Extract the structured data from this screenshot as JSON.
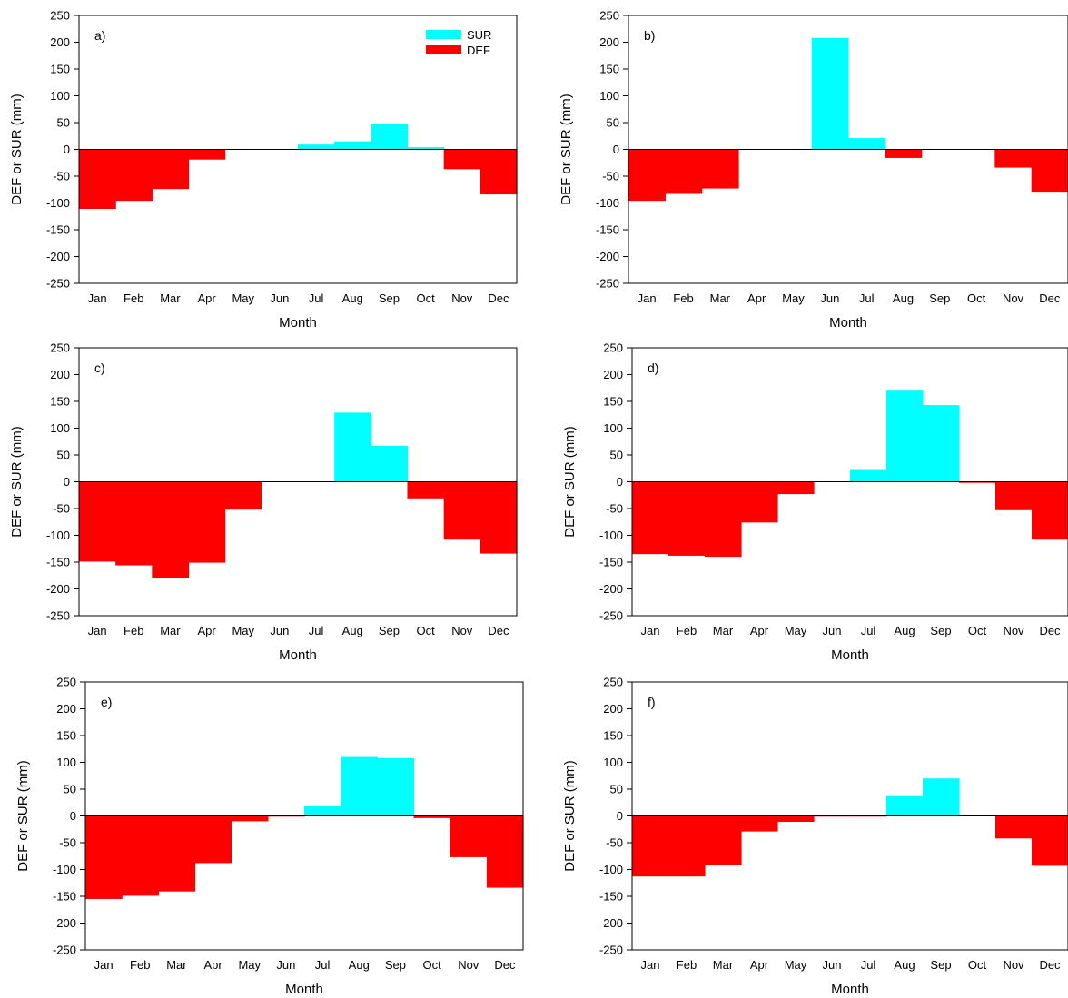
{
  "chart_data": [
    {
      "type": "bar",
      "panel_label": "a)",
      "categories": [
        "Jan",
        "Feb",
        "Mar",
        "Apr",
        "May",
        "Jun",
        "Jul",
        "Aug",
        "Sep",
        "Oct",
        "Nov",
        "Dec"
      ],
      "series": [
        {
          "name": "SUR",
          "values": [
            0,
            0,
            0,
            0,
            0,
            0,
            9,
            15,
            47,
            4,
            0,
            0
          ]
        },
        {
          "name": "DEF",
          "values": [
            -111,
            -96,
            -74,
            -19,
            0,
            0,
            0,
            0,
            0,
            0,
            -37,
            -84
          ]
        }
      ],
      "xlabel": "Month",
      "ylabel": "DEF or SUR (mm)",
      "ylim": [
        -250,
        250
      ],
      "yticks": [
        250,
        200,
        150,
        100,
        50,
        0,
        -50,
        -100,
        -150,
        -200,
        -250
      ],
      "legend": {
        "entries": [
          "SUR",
          "DEF"
        ],
        "position": "top-right"
      }
    },
    {
      "type": "bar",
      "panel_label": "b)",
      "categories": [
        "Jan",
        "Feb",
        "Mar",
        "Apr",
        "May",
        "Jun",
        "Jul",
        "Aug",
        "Sep",
        "Oct",
        "Nov",
        "Dec"
      ],
      "series": [
        {
          "name": "SUR",
          "values": [
            0,
            0,
            0,
            0,
            0,
            208,
            21,
            0,
            0,
            0,
            0,
            0
          ]
        },
        {
          "name": "DEF",
          "values": [
            -96,
            -83,
            -73,
            0,
            0,
            0,
            0,
            -16,
            0,
            0,
            -34,
            -79
          ]
        }
      ],
      "xlabel": "Month",
      "ylabel": "DEF or SUR (mm)",
      "ylim": [
        -250,
        250
      ],
      "yticks": [
        250,
        200,
        150,
        100,
        50,
        0,
        -50,
        -100,
        -150,
        -200,
        -250
      ]
    },
    {
      "type": "bar",
      "panel_label": "c)",
      "categories": [
        "Jan",
        "Feb",
        "Mar",
        "Apr",
        "May",
        "Jun",
        "Jul",
        "Aug",
        "Sep",
        "Oct",
        "Nov",
        "Dec"
      ],
      "series": [
        {
          "name": "SUR",
          "values": [
            0,
            0,
            0,
            0,
            0,
            0,
            0,
            129,
            67,
            0,
            0,
            0
          ]
        },
        {
          "name": "DEF",
          "values": [
            -149,
            -156,
            -180,
            -151,
            -52,
            0,
            0,
            0,
            0,
            -31,
            -108,
            -134
          ]
        }
      ],
      "xlabel": "Month",
      "ylabel": "DEF or SUR (mm)",
      "ylim": [
        -250,
        250
      ],
      "yticks": [
        250,
        200,
        150,
        100,
        50,
        0,
        -50,
        -100,
        -150,
        -200,
        -250
      ]
    },
    {
      "type": "bar",
      "panel_label": "d)",
      "categories": [
        "Jan",
        "Feb",
        "Mar",
        "Apr",
        "May",
        "Jun",
        "Jul",
        "Aug",
        "Sep",
        "Oct",
        "Nov",
        "Dec"
      ],
      "series": [
        {
          "name": "SUR",
          "values": [
            0,
            0,
            0,
            0,
            0,
            0,
            22,
            170,
            143,
            0,
            0,
            0
          ]
        },
        {
          "name": "DEF",
          "values": [
            -135,
            -138,
            -140,
            -76,
            -23,
            0,
            0,
            0,
            0,
            -2,
            -53,
            -108
          ]
        }
      ],
      "xlabel": "Month",
      "ylabel": "DEF or SUR (mm)",
      "ylim": [
        -250,
        250
      ],
      "yticks": [
        250,
        200,
        150,
        100,
        50,
        0,
        -50,
        -100,
        -150,
        -200,
        -250
      ]
    },
    {
      "type": "bar",
      "panel_label": "e)",
      "categories": [
        "Jan",
        "Feb",
        "Mar",
        "Apr",
        "May",
        "Jun",
        "Jul",
        "Aug",
        "Sep",
        "Oct",
        "Nov",
        "Dec"
      ],
      "series": [
        {
          "name": "SUR",
          "values": [
            0,
            0,
            0,
            0,
            0,
            0,
            18,
            110,
            108,
            0,
            0,
            0
          ]
        },
        {
          "name": "DEF",
          "values": [
            -155,
            -149,
            -141,
            -88,
            -10,
            -1,
            0,
            0,
            0,
            -4,
            -77,
            -134
          ]
        }
      ],
      "xlabel": "Month",
      "ylabel": "DEF or SUR (mm)",
      "ylim": [
        -250,
        250
      ],
      "yticks": [
        250,
        200,
        150,
        100,
        50,
        0,
        -50,
        -100,
        -150,
        -200,
        -250
      ]
    },
    {
      "type": "bar",
      "panel_label": "f)",
      "categories": [
        "Jan",
        "Feb",
        "Mar",
        "Apr",
        "May",
        "Jun",
        "Jul",
        "Aug",
        "Sep",
        "Oct",
        "Nov",
        "Dec"
      ],
      "series": [
        {
          "name": "SUR",
          "values": [
            0,
            0,
            0,
            0,
            0,
            0,
            0,
            37,
            70,
            1,
            0,
            0
          ]
        },
        {
          "name": "DEF",
          "values": [
            -113,
            -113,
            -92,
            -29,
            -11,
            -1,
            -1,
            0,
            0,
            0,
            -42,
            -93
          ]
        }
      ],
      "xlabel": "Month",
      "ylabel": "DEF or SUR (mm)",
      "ylim": [
        -250,
        250
      ],
      "yticks": [
        250,
        200,
        150,
        100,
        50,
        0,
        -50,
        -100,
        -150,
        -200,
        -250
      ]
    }
  ],
  "colors": {
    "SUR": "#00ffff",
    "DEF": "#ff0000",
    "axis": "#000000"
  }
}
